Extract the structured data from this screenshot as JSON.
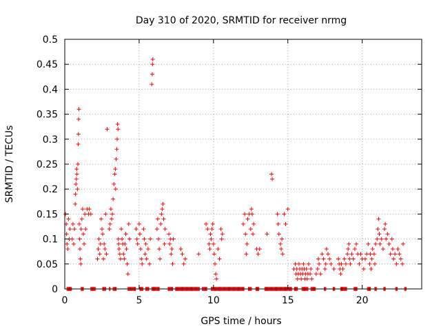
{
  "chart_data": {
    "type": "scatter",
    "title": "Day 310 of 2020, SRMTID for receiver nrmg",
    "xlabel": "GPS time / hours",
    "ylabel": "SRMTID / TECUs",
    "xlim": [
      0,
      24
    ],
    "ylim": [
      0,
      0.5
    ],
    "xticks": [
      "0",
      "5",
      "10",
      "15",
      "20"
    ],
    "yticks": [
      "0",
      "0.05",
      "0.1",
      "0.15",
      "0.2",
      "0.25",
      "0.3",
      "0.35",
      "0.4",
      "0.45",
      "0.5"
    ],
    "grid": true,
    "marker": "+",
    "color": "#ff0000",
    "series": [
      {
        "name": "SRMTID",
        "points": [
          [
            0.05,
            0.15
          ],
          [
            0.1,
            0.13
          ],
          [
            0.12,
            0.11
          ],
          [
            0.15,
            0.09
          ],
          [
            0.2,
            0.08
          ],
          [
            0.25,
            0.14
          ],
          [
            0.3,
            0.1
          ],
          [
            0.35,
            0.12
          ],
          [
            0.5,
            0.1
          ],
          [
            0.55,
            0.13
          ],
          [
            0.6,
            0.09
          ],
          [
            0.65,
            0.12
          ],
          [
            0.7,
            0.17
          ],
          [
            0.72,
            0.19
          ],
          [
            0.75,
            0.21
          ],
          [
            0.78,
            0.22
          ],
          [
            0.8,
            0.24
          ],
          [
            0.82,
            0.23
          ],
          [
            0.85,
            0.2
          ],
          [
            0.88,
            0.25
          ],
          [
            0.9,
            0.29
          ],
          [
            0.92,
            0.31
          ],
          [
            0.93,
            0.34
          ],
          [
            0.95,
            0.36
          ],
          [
            0.97,
            0.13
          ],
          [
            1.0,
            0.1
          ],
          [
            1.02,
            0.08
          ],
          [
            1.05,
            0.06
          ],
          [
            1.08,
            0.05
          ],
          [
            1.1,
            0.12
          ],
          [
            1.15,
            0.14
          ],
          [
            1.2,
            0.16
          ],
          [
            1.25,
            0.11
          ],
          [
            1.3,
            0.09
          ],
          [
            1.35,
            0.15
          ],
          [
            1.4,
            0.12
          ],
          [
            1.5,
            0.16
          ],
          [
            1.6,
            0.15
          ],
          [
            1.65,
            0.16
          ],
          [
            1.75,
            0.15
          ],
          [
            2.2,
            0.06
          ],
          [
            2.25,
            0.08
          ],
          [
            2.3,
            0.1
          ],
          [
            2.35,
            0.07
          ],
          [
            2.4,
            0.09
          ],
          [
            2.45,
            0.14
          ],
          [
            2.5,
            0.12
          ],
          [
            2.55,
            0.11
          ],
          [
            2.6,
            0.06
          ],
          [
            2.65,
            0.09
          ],
          [
            2.7,
            0.08
          ],
          [
            2.75,
            0.15
          ],
          [
            2.8,
            0.07
          ],
          [
            2.85,
            0.32
          ],
          [
            3.0,
            0.12
          ],
          [
            3.05,
            0.13
          ],
          [
            3.1,
            0.16
          ],
          [
            3.15,
            0.14
          ],
          [
            3.2,
            0.15
          ],
          [
            3.25,
            0.18
          ],
          [
            3.3,
            0.21
          ],
          [
            3.35,
            0.23
          ],
          [
            3.4,
            0.24
          ],
          [
            3.42,
            0.2
          ],
          [
            3.45,
            0.26
          ],
          [
            3.5,
            0.28
          ],
          [
            3.52,
            0.3
          ],
          [
            3.55,
            0.33
          ],
          [
            3.58,
            0.32
          ],
          [
            3.6,
            0.1
          ],
          [
            3.62,
            0.09
          ],
          [
            3.65,
            0.08
          ],
          [
            3.7,
            0.07
          ],
          [
            3.75,
            0.06
          ],
          [
            3.8,
            0.12
          ],
          [
            3.85,
            0.1
          ],
          [
            3.9,
            0.09
          ],
          [
            3.95,
            0.07
          ],
          [
            4.0,
            0.06
          ],
          [
            4.05,
            0.09
          ],
          [
            4.1,
            0.11
          ],
          [
            4.15,
            0.08
          ],
          [
            4.2,
            0.05
          ],
          [
            4.25,
            0.03
          ],
          [
            4.3,
            0.13
          ],
          [
            4.35,
            0.1
          ],
          [
            4.8,
            0.12
          ],
          [
            4.85,
            0.1
          ],
          [
            4.9,
            0.09
          ],
          [
            5.0,
            0.13
          ],
          [
            5.05,
            0.11
          ],
          [
            5.1,
            0.08
          ],
          [
            5.15,
            0.06
          ],
          [
            5.2,
            0.05
          ],
          [
            5.3,
            0.12
          ],
          [
            5.35,
            0.1
          ],
          [
            5.4,
            0.07
          ],
          [
            5.45,
            0.09
          ],
          [
            5.5,
            0.06
          ],
          [
            5.6,
            0.08
          ],
          [
            5.7,
            0.05
          ],
          [
            5.75,
            0.1
          ],
          [
            5.85,
            0.41
          ],
          [
            5.88,
            0.43
          ],
          [
            5.9,
            0.45
          ],
          [
            5.92,
            0.46
          ],
          [
            6.2,
            0.12
          ],
          [
            6.25,
            0.14
          ],
          [
            6.3,
            0.1
          ],
          [
            6.35,
            0.08
          ],
          [
            6.4,
            0.06
          ],
          [
            6.45,
            0.13
          ],
          [
            6.5,
            0.15
          ],
          [
            6.55,
            0.16
          ],
          [
            6.6,
            0.17
          ],
          [
            6.65,
            0.14
          ],
          [
            6.7,
            0.09
          ],
          [
            6.75,
            0.12
          ],
          [
            7.0,
            0.11
          ],
          [
            7.05,
            0.09
          ],
          [
            7.1,
            0.1
          ],
          [
            7.15,
            0.07
          ],
          [
            7.2,
            0.08
          ],
          [
            7.25,
            0.05
          ],
          [
            7.3,
            0.1
          ],
          [
            7.8,
            0.08
          ],
          [
            7.9,
            0.07
          ],
          [
            8.0,
            0.05
          ],
          [
            8.1,
            0.06
          ],
          [
            9.0,
            0.07
          ],
          [
            9.5,
            0.13
          ],
          [
            9.6,
            0.12
          ],
          [
            9.7,
            0.09
          ],
          [
            9.75,
            0.08
          ],
          [
            9.8,
            0.11
          ],
          [
            9.85,
            0.1
          ],
          [
            9.9,
            0.12
          ],
          [
            9.95,
            0.13
          ],
          [
            10.0,
            0.09
          ],
          [
            10.05,
            0.07
          ],
          [
            10.1,
            0.05
          ],
          [
            10.15,
            0.03
          ],
          [
            10.2,
            0.02
          ],
          [
            10.3,
            0.08
          ],
          [
            10.4,
            0.06
          ],
          [
            10.5,
            0.12
          ],
          [
            10.55,
            0.1
          ],
          [
            10.6,
            0.11
          ],
          [
            12.0,
            0.13
          ],
          [
            12.1,
            0.15
          ],
          [
            12.15,
            0.11
          ],
          [
            12.2,
            0.07
          ],
          [
            12.25,
            0.09
          ],
          [
            12.3,
            0.14
          ],
          [
            12.4,
            0.15
          ],
          [
            12.5,
            0.12
          ],
          [
            12.55,
            0.16
          ],
          [
            12.6,
            0.15
          ],
          [
            12.65,
            0.11
          ],
          [
            12.7,
            0.13
          ],
          [
            12.9,
            0.08
          ],
          [
            13.0,
            0.07
          ],
          [
            13.1,
            0.08
          ],
          [
            13.6,
            0.11
          ],
          [
            13.9,
            0.23
          ],
          [
            13.95,
            0.22
          ],
          [
            14.3,
            0.15
          ],
          [
            14.35,
            0.13
          ],
          [
            14.4,
            0.11
          ],
          [
            14.5,
            0.09
          ],
          [
            14.55,
            0.08
          ],
          [
            14.6,
            0.1
          ],
          [
            14.65,
            0.07
          ],
          [
            14.75,
            0.15
          ],
          [
            14.85,
            0.13
          ],
          [
            15.0,
            0.16
          ],
          [
            15.4,
            0.04
          ],
          [
            15.5,
            0.05
          ],
          [
            15.55,
            0.03
          ],
          [
            15.6,
            0.04
          ],
          [
            15.65,
            0.02
          ],
          [
            15.7,
            0.03
          ],
          [
            15.75,
            0.05
          ],
          [
            15.8,
            0.04
          ],
          [
            15.85,
            0.03
          ],
          [
            15.9,
            0.02
          ],
          [
            15.95,
            0.04
          ],
          [
            16.0,
            0.03
          ],
          [
            16.05,
            0.05
          ],
          [
            16.1,
            0.04
          ],
          [
            16.15,
            0.02
          ],
          [
            16.2,
            0.03
          ],
          [
            16.25,
            0.04
          ],
          [
            16.3,
            0.02
          ],
          [
            16.35,
            0.03
          ],
          [
            16.4,
            0.05
          ],
          [
            16.5,
            0.03
          ],
          [
            16.55,
            0.04
          ],
          [
            16.6,
            0.02
          ],
          [
            16.9,
            0.03
          ],
          [
            17.0,
            0.04
          ],
          [
            17.05,
            0.06
          ],
          [
            17.1,
            0.05
          ],
          [
            17.2,
            0.03
          ],
          [
            17.3,
            0.07
          ],
          [
            17.4,
            0.06
          ],
          [
            17.5,
            0.04
          ],
          [
            17.55,
            0.05
          ],
          [
            17.6,
            0.08
          ],
          [
            17.7,
            0.07
          ],
          [
            17.8,
            0.06
          ],
          [
            17.9,
            0.05
          ],
          [
            18.1,
            0.04
          ],
          [
            18.4,
            0.06
          ],
          [
            18.45,
            0.05
          ],
          [
            18.5,
            0.04
          ],
          [
            18.55,
            0.03
          ],
          [
            18.6,
            0.05
          ],
          [
            18.7,
            0.04
          ],
          [
            18.8,
            0.06
          ],
          [
            18.9,
            0.05
          ],
          [
            19.0,
            0.07
          ],
          [
            19.05,
            0.08
          ],
          [
            19.1,
            0.09
          ],
          [
            19.15,
            0.06
          ],
          [
            19.2,
            0.05
          ],
          [
            19.3,
            0.07
          ],
          [
            19.4,
            0.06
          ],
          [
            19.5,
            0.08
          ],
          [
            19.6,
            0.09
          ],
          [
            19.7,
            0.07
          ],
          [
            19.8,
            0.05
          ],
          [
            19.9,
            0.07
          ],
          [
            20.0,
            0.06
          ],
          [
            20.1,
            0.04
          ],
          [
            20.2,
            0.06
          ],
          [
            20.3,
            0.07
          ],
          [
            20.4,
            0.09
          ],
          [
            20.5,
            0.05
          ],
          [
            20.55,
            0.07
          ],
          [
            20.6,
            0.04
          ],
          [
            20.65,
            0.06
          ],
          [
            20.7,
            0.08
          ],
          [
            20.8,
            0.07
          ],
          [
            20.85,
            0.05
          ],
          [
            20.9,
            0.09
          ],
          [
            21.0,
            0.1
          ],
          [
            21.05,
            0.12
          ],
          [
            21.1,
            0.14
          ],
          [
            21.15,
            0.11
          ],
          [
            21.2,
            0.09
          ],
          [
            21.3,
            0.1
          ],
          [
            21.4,
            0.08
          ],
          [
            21.5,
            0.12
          ],
          [
            21.55,
            0.13
          ],
          [
            21.6,
            0.1
          ],
          [
            21.7,
            0.11
          ],
          [
            21.8,
            0.09
          ],
          [
            21.9,
            0.07
          ],
          [
            22.0,
            0.1
          ],
          [
            22.05,
            0.08
          ],
          [
            22.1,
            0.06
          ],
          [
            22.2,
            0.07
          ],
          [
            22.3,
            0.05
          ],
          [
            22.4,
            0.08
          ],
          [
            22.5,
            0.07
          ],
          [
            22.6,
            0.06
          ],
          [
            22.7,
            0.05
          ],
          [
            22.75,
            0.09
          ]
        ],
        "zero_runs": [
          [
            0.15,
            0.45
          ],
          [
            1.1,
            1.25
          ],
          [
            1.75,
            2.05
          ],
          [
            2.55,
            2.75
          ],
          [
            3.0,
            3.05
          ],
          [
            3.25,
            3.45
          ],
          [
            4.25,
            4.75
          ],
          [
            5.05,
            5.25
          ],
          [
            5.45,
            5.65
          ],
          [
            5.85,
            6.35
          ],
          [
            6.95,
            7.25
          ],
          [
            7.45,
            9.05
          ],
          [
            9.25,
            9.55
          ],
          [
            9.85,
            12.05
          ],
          [
            12.35,
            12.55
          ],
          [
            12.85,
            13.05
          ],
          [
            13.45,
            15.25
          ],
          [
            15.45,
            15.65
          ],
          [
            15.95,
            16.35
          ],
          [
            16.55,
            16.85
          ],
          [
            17.45,
            17.55
          ],
          [
            18.05,
            18.15
          ],
          [
            18.55,
            18.95
          ],
          [
            19.45,
            19.65
          ],
          [
            20.35,
            20.55
          ],
          [
            20.85,
            20.95
          ],
          [
            21.45,
            21.55
          ],
          [
            22.25,
            22.35
          ],
          [
            22.85,
            22.95
          ]
        ]
      }
    ]
  }
}
